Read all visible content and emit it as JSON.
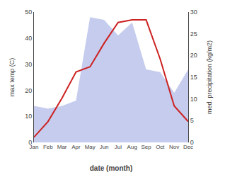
{
  "chart_data": {
    "type": "line",
    "categories": [
      "Jan",
      "Feb",
      "Mar",
      "Apr",
      "May",
      "Jun",
      "Jul",
      "Aug",
      "Sep",
      "Oct",
      "Nov",
      "Dec"
    ],
    "series": [
      {
        "type": "area",
        "color": "#c5ccee",
        "values": [
          14,
          13,
          14,
          16,
          48,
          47,
          41,
          46,
          28,
          27,
          19,
          28
        ]
      },
      {
        "type": "line",
        "color": "#cc2222",
        "values": [
          2,
          8,
          17,
          27,
          29,
          38,
          46,
          47,
          47,
          32,
          14,
          8
        ]
      }
    ],
    "x_label": "date (month)",
    "y_label": "max temp (C)",
    "y2_label": "med. precipitation (kg/m2)",
    "ylim": [
      0,
      50
    ],
    "yticks": [
      0,
      10,
      20,
      30,
      40,
      50
    ],
    "y2lim": [
      0,
      30
    ],
    "y2ticks": [
      0,
      5,
      10,
      15,
      20,
      25,
      30
    ],
    "grid": false
  }
}
